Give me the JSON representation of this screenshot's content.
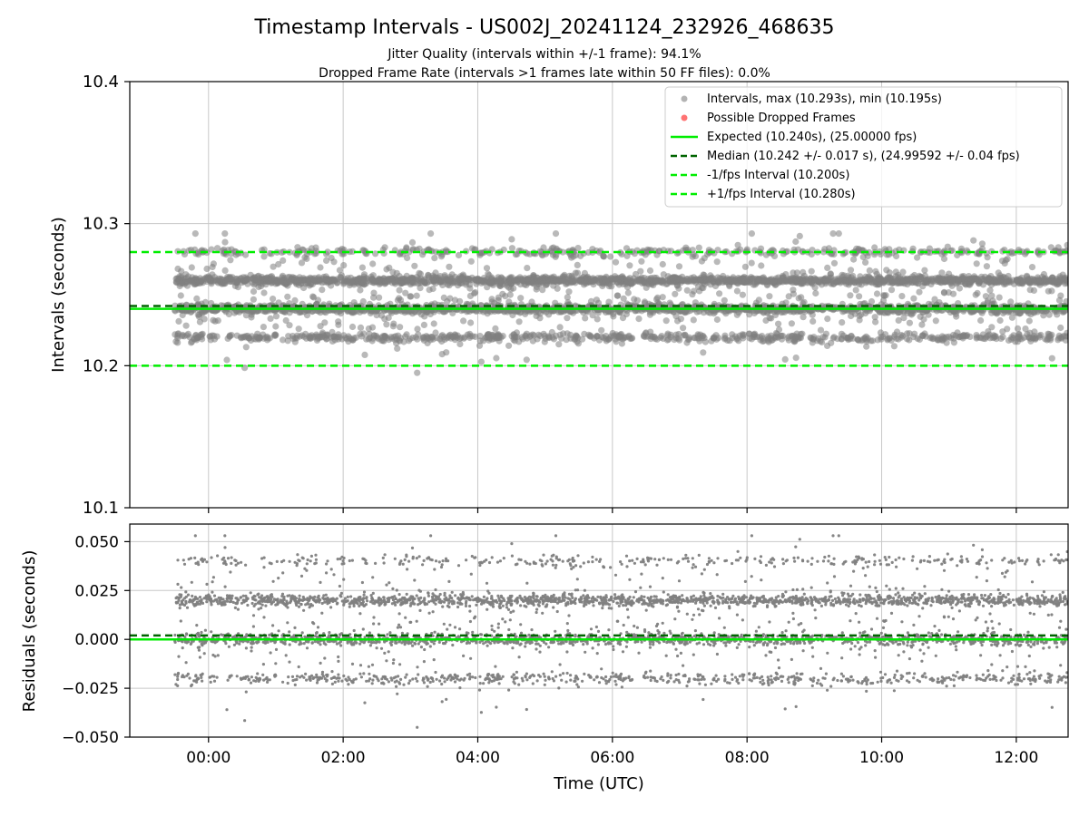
{
  "chart_data": [
    {
      "type": "scatter",
      "title": "Timestamp Intervals - US002J_20241124_232926_468635",
      "subtitle_1": "Jitter Quality (intervals within +/-1 frame): 94.1%",
      "subtitle_2": "Dropped Frame Rate (intervals >1 frames late within 50 FF files): 0.0%",
      "xlabel": "",
      "ylabel": "Intervals (seconds)",
      "ylim": [
        10.1,
        10.4
      ],
      "yticks": [
        "10.1",
        "10.2",
        "10.3",
        "10.4"
      ],
      "yticks_values": [
        10.1,
        10.2,
        10.3,
        10.4
      ],
      "xlim_hours": [
        -1.17,
        12.77
      ],
      "xticks_hours": [
        0,
        2,
        4,
        6,
        8,
        10,
        12
      ],
      "grid": true,
      "legend_position": "top-right",
      "legend": [
        {
          "label": "Intervals, max (10.293s), min (10.195s)",
          "kind": "marker",
          "color": "#808080"
        },
        {
          "label": "Possible Dropped Frames",
          "kind": "marker",
          "color": "#ff0000"
        },
        {
          "label": "Expected (10.240s), (25.00000 fps)",
          "kind": "solid",
          "color": "#00ee00"
        },
        {
          "label": "Median (10.242 +/- 0.017 s), (24.99592 +/- 0.04 fps)",
          "kind": "dashed",
          "color": "#006400"
        },
        {
          "label": "-1/fps Interval (10.200s)",
          "kind": "dashed",
          "color": "#00ee00"
        },
        {
          "label": "+1/fps Interval (10.280s)",
          "kind": "dashed",
          "color": "#00ee00"
        }
      ],
      "reference_lines": {
        "expected": 10.24,
        "median": 10.242,
        "minus_one_fps": 10.2,
        "plus_one_fps": 10.28
      },
      "series": [
        {
          "name": "Intervals, max (10.293s), min (10.195s)",
          "x_range_hours": [
            -0.5,
            12.77
          ],
          "approx_point_count": 4600,
          "levels": [
            {
              "y": 10.26,
              "share": 0.36,
              "spread": 0.0015
            },
            {
              "y": 10.24,
              "share": 0.3,
              "spread": 0.0015
            },
            {
              "y": 10.22,
              "share": 0.14,
              "spread": 0.0015
            },
            {
              "y": 10.28,
              "share": 0.08,
              "spread": 0.0015
            },
            {
              "y": 10.25,
              "share": 0.12,
              "spread": 0.018
            }
          ],
          "max": 10.293,
          "min": 10.195
        },
        {
          "name": "Possible Dropped Frames",
          "values": []
        }
      ]
    },
    {
      "type": "scatter",
      "xlabel": "Time (UTC)",
      "ylabel": "Residuals (seconds)",
      "ylim": [
        -0.05,
        0.059
      ],
      "yticks": [
        "−0.050",
        "−0.025",
        "0.000",
        "0.025",
        "0.050"
      ],
      "yticks_values": [
        -0.05,
        -0.025,
        0.0,
        0.025,
        0.05
      ],
      "xticks": [
        "00:00",
        "02:00",
        "04:00",
        "06:00",
        "08:00",
        "10:00",
        "12:00"
      ],
      "xticks_hours": [
        0,
        2,
        4,
        6,
        8,
        10,
        12
      ],
      "grid": true,
      "reference_lines": {
        "zero": 0.0,
        "median_residual": 0.002
      },
      "series": [
        {
          "name": "",
          "levels": [
            {
              "y": 0.02,
              "share": 0.36,
              "spread": 0.0015
            },
            {
              "y": 0.0,
              "share": 0.3,
              "spread": 0.0015
            },
            {
              "y": -0.02,
              "share": 0.14,
              "spread": 0.0015
            },
            {
              "y": 0.04,
              "share": 0.08,
              "spread": 0.0015
            },
            {
              "y": 0.01,
              "share": 0.12,
              "spread": 0.018
            }
          ],
          "max": 0.053,
          "min": -0.045
        }
      ]
    }
  ],
  "colors": {
    "points": "#808080",
    "expected": "#00ee00",
    "median": "#006400",
    "grid": "#c8c8c8"
  }
}
